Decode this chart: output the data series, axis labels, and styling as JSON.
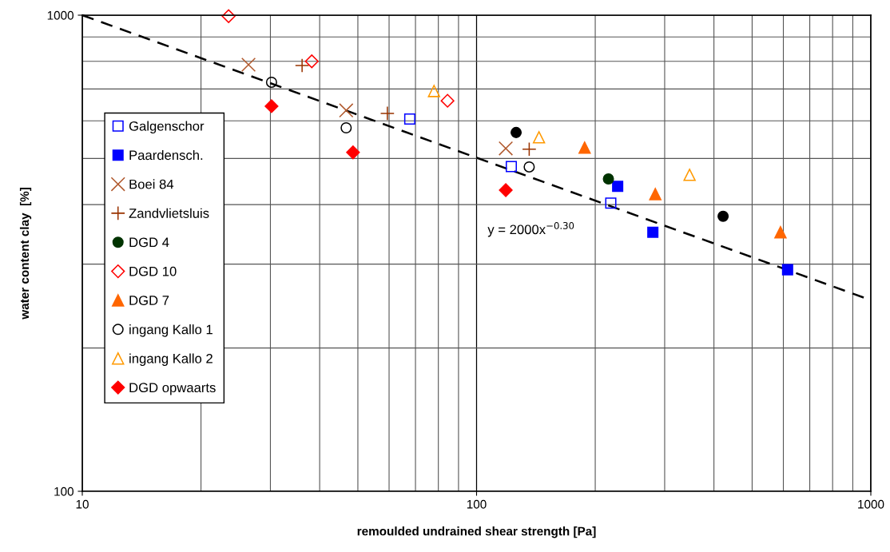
{
  "chart_data": {
    "type": "scatter",
    "xlabel": "remoulded undrained shear strength [Pa]",
    "ylabel": "water content clay  [%]",
    "log": "xy",
    "xlim": [
      10,
      1000
    ],
    "ylim": [
      100,
      1000
    ],
    "xticks": [
      10,
      100,
      1000
    ],
    "yticks": [
      100,
      1000
    ],
    "grid": true,
    "legend": "left",
    "annotations": [
      "y = 2000x$^{−0.30}$"
    ],
    "series": [
      {
        "name": "Galgenschor",
        "color": "#0000ff",
        "marker": "square",
        "x": [
          67.7,
          122.5,
          219
        ],
        "values": [
          605,
          481,
          403
        ]
      },
      {
        "name": "Paardensch.",
        "color": "#0000ff",
        "marker": "square",
        "x": [
          228,
          280,
          615
        ],
        "values": [
          437,
          350,
          292
        ]
      },
      {
        "name": "Boei 84",
        "color": "#b0582c",
        "marker": "cross",
        "x": [
          26.4,
          46.7,
          118.6
        ],
        "values": [
          787,
          631,
          525
        ]
      },
      {
        "name": "Zandvlietsluis",
        "color": "#993300",
        "marker": "plus",
        "x": [
          36.1,
          59.4,
          136
        ],
        "values": [
          784,
          622,
          523
        ]
      },
      {
        "name": "DGD 4",
        "color": "#003300",
        "marker": "circle",
        "x": [
          216
        ],
        "values": [
          453
        ]
      },
      {
        "name": "DGD 10",
        "color": "#ff0000",
        "marker": "diamond",
        "x": [
          23.5,
          38.2,
          84.4
        ],
        "values": [
          995,
          800,
          661
        ]
      },
      {
        "name": "DGD 7",
        "color": "#ff6600",
        "marker": "triangle",
        "x": [
          188,
          284,
          590
        ],
        "values": [
          527,
          421,
          350
        ]
      },
      {
        "name": "ingang Kallo 1",
        "color": "#000000",
        "marker": "circle",
        "x": [
          30.2,
          46.7,
          136
        ],
        "values": [
          723,
          580,
          480
        ]
      },
      {
        "name": "ingang Kallo 2",
        "color": "#ff9900",
        "marker": "triangle",
        "x": [
          78,
          144,
          347
        ],
        "values": [
          693,
          554,
          462
        ]
      },
      {
        "name": "DGD opwaarts",
        "color": "#ff0000",
        "marker": "diamond",
        "x": [
          30.2,
          48.6,
          118.6
        ],
        "values": [
          644,
          515,
          429
        ]
      },
      {
        "color": "#000000",
        "marker": "circle",
        "x": [
          126,
          422
        ],
        "values": [
          567,
          378
        ]
      },
      {
        "type": "line",
        "color": "#000000",
        "line_style": "dashed",
        "marker": "none",
        "x": [
          10,
          1000
        ],
        "values": [
          1000,
          252
        ]
      }
    ]
  }
}
